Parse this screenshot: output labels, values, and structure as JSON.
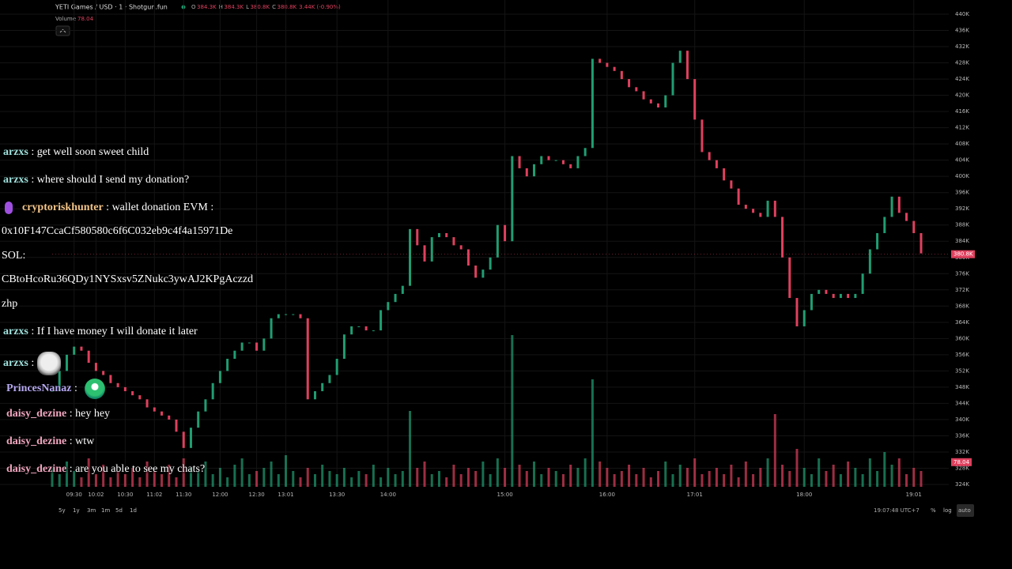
{
  "header": {
    "title": "YETI Games / USD · 1 · Shotgun.fun",
    "ohlc": [
      {
        "key": "O",
        "value": "384.3K"
      },
      {
        "key": "H",
        "value": "384.3K"
      },
      {
        "key": "L",
        "value": "380.8K"
      },
      {
        "key": "C",
        "value": "380.8K"
      }
    ],
    "change": "3.44K (-0.90%)",
    "volume_label": "Volume",
    "volume_value": "78.04"
  },
  "chart_data": {
    "type": "candlestick",
    "categories": [
      null,
      null,
      null,
      "09:30",
      null,
      null,
      "10:02",
      null,
      null,
      null,
      "10:30",
      null,
      null,
      null,
      "11:02",
      null,
      null,
      null,
      "11:30",
      null,
      null,
      null,
      null,
      "12:00",
      null,
      null,
      null,
      null,
      "12:30",
      null,
      null,
      null,
      "13:01",
      null,
      null,
      null,
      null,
      null,
      null,
      "13:30",
      null,
      null,
      null,
      null,
      null,
      null,
      "14:00",
      null,
      null,
      null,
      null,
      null,
      null,
      null,
      null,
      null,
      null,
      null,
      null,
      null,
      null,
      null,
      "15:00",
      null,
      null,
      null,
      null,
      null,
      null,
      null,
      null,
      null,
      null,
      null,
      null,
      null,
      "16:00",
      null,
      null,
      null,
      null,
      null,
      null,
      null,
      null,
      null,
      null,
      null,
      "17:01",
      null,
      null,
      null,
      null,
      null,
      null,
      null,
      null,
      null,
      null,
      null,
      null,
      null,
      null,
      "18:00",
      null,
      null,
      null,
      null,
      null,
      null,
      null,
      null,
      null,
      null,
      null,
      null,
      null,
      null,
      "19:01",
      null
    ],
    "values": [
      347,
      352,
      356,
      358,
      357,
      354,
      352,
      351,
      349,
      348,
      347,
      346,
      345,
      343,
      342,
      341,
      340,
      337,
      333,
      338,
      342,
      345,
      349,
      352,
      355,
      357,
      359,
      359,
      357,
      360,
      365,
      366,
      366,
      366,
      365,
      345,
      347,
      349,
      351,
      355,
      361,
      363,
      363,
      362,
      362,
      367,
      369,
      371,
      373,
      387,
      383,
      379,
      385,
      386,
      385,
      383,
      382,
      378,
      375,
      377,
      380,
      388,
      384,
      405,
      402,
      400,
      403,
      405,
      404,
      404,
      403,
      402,
      405,
      407,
      429,
      428,
      427,
      426,
      424,
      422,
      421,
      419,
      418,
      417,
      420,
      428,
      431,
      424,
      414,
      406,
      404,
      402,
      399,
      397,
      393,
      392,
      391,
      390,
      394,
      390,
      380,
      370,
      363,
      367,
      371,
      372,
      371,
      370,
      371,
      370,
      371,
      376,
      382,
      386,
      390,
      395,
      391,
      389,
      386,
      381
    ],
    "volume": [
      60,
      40,
      80,
      50,
      30,
      90,
      40,
      70,
      30,
      50,
      40,
      60,
      30,
      80,
      50,
      40,
      70,
      30,
      90,
      60,
      50,
      80,
      40,
      60,
      30,
      70,
      90,
      40,
      50,
      60,
      80,
      40,
      100,
      50,
      30,
      60,
      40,
      70,
      50,
      40,
      60,
      30,
      50,
      40,
      70,
      30,
      60,
      40,
      50,
      240,
      60,
      80,
      40,
      50,
      30,
      70,
      40,
      60,
      50,
      80,
      40,
      90,
      60,
      480,
      70,
      50,
      80,
      40,
      60,
      50,
      40,
      70,
      60,
      90,
      340,
      80,
      60,
      40,
      50,
      70,
      40,
      60,
      30,
      50,
      80,
      40,
      70,
      60,
      90,
      40,
      50,
      60,
      40,
      70,
      30,
      80,
      40,
      60,
      90,
      230,
      70,
      50,
      120,
      60,
      40,
      90,
      50,
      70,
      40,
      80,
      60,
      40,
      90,
      50,
      110,
      70,
      90,
      40,
      60,
      50
    ],
    "volume_ylim": [
      0,
      500
    ],
    "up_color": "#1f9e72",
    "down_color": "#e0405e",
    "ylim": [
      324,
      440
    ],
    "yticks": [
      {
        "value": 440,
        "label": "440K"
      },
      {
        "value": 436,
        "label": "436K"
      },
      {
        "value": 432,
        "label": "432K"
      },
      {
        "value": 428,
        "label": "428K"
      },
      {
        "value": 424,
        "label": "424K"
      },
      {
        "value": 420,
        "label": "420K"
      },
      {
        "value": 416,
        "label": "416K"
      },
      {
        "value": 412,
        "label": "412K"
      },
      {
        "value": 408,
        "label": "408K"
      },
      {
        "value": 404,
        "label": "404K"
      },
      {
        "value": 400,
        "label": "400K"
      },
      {
        "value": 396,
        "label": "396K"
      },
      {
        "value": 392,
        "label": "392K"
      },
      {
        "value": 388,
        "label": "388K"
      },
      {
        "value": 384,
        "label": "384K"
      },
      {
        "value": 380,
        "label": "380K"
      },
      {
        "value": 376,
        "label": "376K"
      },
      {
        "value": 372,
        "label": "372K"
      },
      {
        "value": 368,
        "label": "368K"
      },
      {
        "value": 364,
        "label": "364K"
      },
      {
        "value": 360,
        "label": "360K"
      },
      {
        "value": 356,
        "label": "356K"
      },
      {
        "value": 352,
        "label": "352K"
      },
      {
        "value": 348,
        "label": "348K"
      },
      {
        "value": 344,
        "label": "344K"
      },
      {
        "value": 340,
        "label": "340K"
      },
      {
        "value": 336,
        "label": "336K"
      },
      {
        "value": 332,
        "label": "332K"
      },
      {
        "value": 328,
        "label": "328K"
      },
      {
        "value": 324,
        "label": "324K"
      }
    ],
    "grid": true,
    "last_price": {
      "value": 380.8,
      "label": "380.8K"
    },
    "last_volume": {
      "value": 78.04,
      "label": "78.04"
    }
  },
  "footer": {
    "ranges": [
      "5y",
      "1y",
      "3m",
      "1m",
      "5d",
      "1d"
    ],
    "clock": "19:07:48 UTC+7",
    "options": [
      "%",
      "log",
      "auto"
    ]
  },
  "chat": {
    "separator": ":",
    "messages": [
      {
        "user": "arzxs",
        "color": "#9fe0dc",
        "text": "get well soon sweet child"
      },
      {
        "user": "arzxs",
        "color": "#9fe0dc",
        "text": "where should I send my donation?"
      },
      {
        "user": "cryptoriskhunter",
        "color": "#f3c58a",
        "text": "wallet donation EVM :",
        "badge": "mic"
      },
      {
        "text": "0x10F147CcaCf580580c6f6C032eb9c4f4a15971De"
      },
      {
        "text": "SOL:"
      },
      {
        "text": "CBtoHcoRu36QDy1NYSxsv5ZNukc3ywAJ2KPgAczzd"
      },
      {
        "text": "zhp"
      },
      {
        "user": "arzxs",
        "color": "#9fe0dc",
        "text": "If I have money I will donate it later"
      },
      {
        "user": "arzxs",
        "color": "#9fe0dc",
        "emote": "cat"
      },
      {
        "user": "PrincesNanaz",
        "color": "#b6a8f0",
        "emote": "green"
      },
      {
        "user": "daisy_dezine",
        "color": "#f0a6bf",
        "text": "hey hey"
      },
      {
        "user": "daisy_dezine",
        "color": "#f0a6bf",
        "text": "wtw"
      },
      {
        "user": "daisy_dezine",
        "color": "#f0a6bf",
        "text": "are you able to see my chats?"
      }
    ]
  }
}
